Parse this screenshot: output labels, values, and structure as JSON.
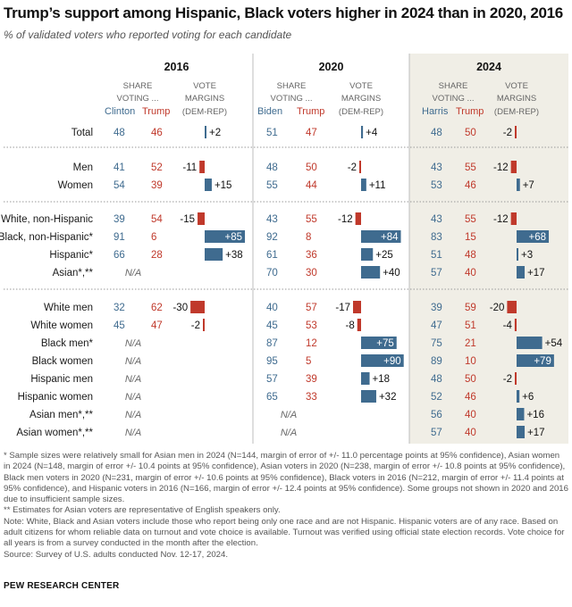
{
  "title": "Trump’s support among Hispanic, Black voters higher in 2024 than in 2020, 2016",
  "subtitle": "% of validated voters who reported voting for each candidate",
  "colors": {
    "dem": "#3f6b8f",
    "rep": "#c0392b",
    "highlight_bg": "#f0eee6",
    "text_gray": "#666666"
  },
  "panels": [
    {
      "year": "2016",
      "share_header": [
        "SHARE",
        "VOTING ..."
      ],
      "margin_header": [
        "VOTE",
        "MARGINS",
        "(DEM-REP)"
      ],
      "dem_name": "Clinton",
      "rep_name": "Trump",
      "highlight": false
    },
    {
      "year": "2020",
      "share_header": [
        "SHARE",
        "VOTING ..."
      ],
      "margin_header": [
        "VOTE",
        "MARGINS",
        "(DEM-REP)"
      ],
      "dem_name": "Biden",
      "rep_name": "Trump",
      "highlight": false
    },
    {
      "year": "2024",
      "share_header": [
        "SHARE",
        "VOTING ..."
      ],
      "margin_header": [
        "VOTE",
        "MARGINS",
        "(DEM-REP)"
      ],
      "dem_name": "Harris",
      "rep_name": "Trump",
      "highlight": true
    }
  ],
  "na_text": "N/A",
  "chart_data": {
    "type": "table",
    "groups": [
      {
        "rows": [
          "Total"
        ]
      },
      {
        "rows": [
          "Men",
          "Women"
        ]
      },
      {
        "rows": [
          "White, non-Hispanic",
          "Black, non-Hispanic*",
          "Hispanic*",
          "Asian*,**"
        ]
      },
      {
        "rows": [
          "White men",
          "White women",
          "Black men*",
          "Black women",
          "Hispanic men",
          "Hispanic women",
          "Asian men*,**",
          "Asian women*,**"
        ]
      }
    ],
    "rows": [
      {
        "label": "Total",
        "values": [
          {
            "dem": "48",
            "rep": "46",
            "margin": "+2",
            "m": 2
          },
          {
            "dem": "51",
            "rep": "47",
            "margin": "+4",
            "m": 4
          },
          {
            "dem": "48",
            "rep": "50",
            "margin": "-2",
            "m": -2
          }
        ]
      },
      {
        "label": "Men",
        "values": [
          {
            "dem": "41",
            "rep": "52",
            "margin": "-11",
            "m": -11
          },
          {
            "dem": "48",
            "rep": "50",
            "margin": "-2",
            "m": -2
          },
          {
            "dem": "43",
            "rep": "55",
            "margin": "-12",
            "m": -12
          }
        ]
      },
      {
        "label": "Women",
        "values": [
          {
            "dem": "54",
            "rep": "39",
            "margin": "+15",
            "m": 15
          },
          {
            "dem": "55",
            "rep": "44",
            "margin": "+11",
            "m": 11
          },
          {
            "dem": "53",
            "rep": "46",
            "margin": "+7",
            "m": 7
          }
        ]
      },
      {
        "label": "White, non-Hispanic",
        "values": [
          {
            "dem": "39",
            "rep": "54",
            "margin": "-15",
            "m": -15
          },
          {
            "dem": "43",
            "rep": "55",
            "margin": "-12",
            "m": -12
          },
          {
            "dem": "43",
            "rep": "55",
            "margin": "-12",
            "m": -12
          }
        ]
      },
      {
        "label": "Black, non-Hispanic*",
        "values": [
          {
            "dem": "91",
            "rep": "6",
            "margin": "+85",
            "m": 85
          },
          {
            "dem": "92",
            "rep": "8",
            "margin": "+84",
            "m": 84
          },
          {
            "dem": "83",
            "rep": "15",
            "margin": "+68",
            "m": 68
          }
        ]
      },
      {
        "label": "Hispanic*",
        "values": [
          {
            "dem": "66",
            "rep": "28",
            "margin": "+38",
            "m": 38
          },
          {
            "dem": "61",
            "rep": "36",
            "margin": "+25",
            "m": 25
          },
          {
            "dem": "51",
            "rep": "48",
            "margin": "+3",
            "m": 3
          }
        ]
      },
      {
        "label": "Asian*,**",
        "values": [
          null,
          {
            "dem": "70",
            "rep": "30",
            "margin": "+40",
            "m": 40
          },
          {
            "dem": "57",
            "rep": "40",
            "margin": "+17",
            "m": 17
          }
        ]
      },
      {
        "label": "White men",
        "values": [
          {
            "dem": "32",
            "rep": "62",
            "margin": "-30",
            "m": -30
          },
          {
            "dem": "40",
            "rep": "57",
            "margin": "-17",
            "m": -17
          },
          {
            "dem": "39",
            "rep": "59",
            "margin": "-20",
            "m": -20
          }
        ]
      },
      {
        "label": "White women",
        "values": [
          {
            "dem": "45",
            "rep": "47",
            "margin": "-2",
            "m": -2
          },
          {
            "dem": "45",
            "rep": "53",
            "margin": "-8",
            "m": -8
          },
          {
            "dem": "47",
            "rep": "51",
            "margin": "-4",
            "m": -4
          }
        ]
      },
      {
        "label": "Black men*",
        "values": [
          null,
          {
            "dem": "87",
            "rep": "12",
            "margin": "+75",
            "m": 75
          },
          {
            "dem": "75",
            "rep": "21",
            "margin": "+54",
            "m": 54
          }
        ]
      },
      {
        "label": "Black women",
        "values": [
          null,
          {
            "dem": "95",
            "rep": "5",
            "margin": "+90",
            "m": 90
          },
          {
            "dem": "89",
            "rep": "10",
            "margin": "+79",
            "m": 79
          }
        ]
      },
      {
        "label": "Hispanic men",
        "values": [
          null,
          {
            "dem": "57",
            "rep": "39",
            "margin": "+18",
            "m": 18
          },
          {
            "dem": "48",
            "rep": "50",
            "margin": "-2",
            "m": -2
          }
        ]
      },
      {
        "label": "Hispanic women",
        "values": [
          null,
          {
            "dem": "65",
            "rep": "33",
            "margin": "+32",
            "m": 32
          },
          {
            "dem": "52",
            "rep": "46",
            "margin": "+6",
            "m": 6
          }
        ]
      },
      {
        "label": "Asian men*,**",
        "values": [
          null,
          null,
          {
            "dem": "56",
            "rep": "40",
            "margin": "+16",
            "m": 16
          }
        ]
      },
      {
        "label": "Asian women*,**",
        "values": [
          null,
          null,
          {
            "dem": "57",
            "rep": "40",
            "margin": "+17",
            "m": 17
          }
        ]
      }
    ]
  },
  "notes": [
    "* Sample sizes were relatively small for Asian men in 2024 (N=144, margin of error of +/- 11.0 percentage points at 95% confidence), Asian women in 2024 (N=148, margin of error +/- 10.4 points at 95% confidence), Asian voters in 2020 (N=238, margin of error +/- 10.8 points at 95% confidence), Black men voters in 2020 (N=231, margin of error +/- 10.6 points at 95% confidence), Black voters in 2016 (N=212, margin of error +/- 11.4 points at 95% confidence), and Hispanic voters in 2016 (N=166, margin of error +/- 12.4 points at 95% confidence). Some groups not shown in 2020 and 2016 due to insufficient sample sizes.",
    "** Estimates for Asian voters are representative of English speakers only.",
    "Note: White, Black and Asian voters include those who report being only one race and are not Hispanic. Hispanic voters are of any race. Based on adult citizens for whom reliable data on turnout and vote choice is available. Turnout was verified using official state election records. Vote choice for all years is from a survey conducted in the month after the election.",
    "Source: Survey of U.S. adults conducted Nov. 12-17, 2024."
  ],
  "org": "PEW RESEARCH CENTER"
}
